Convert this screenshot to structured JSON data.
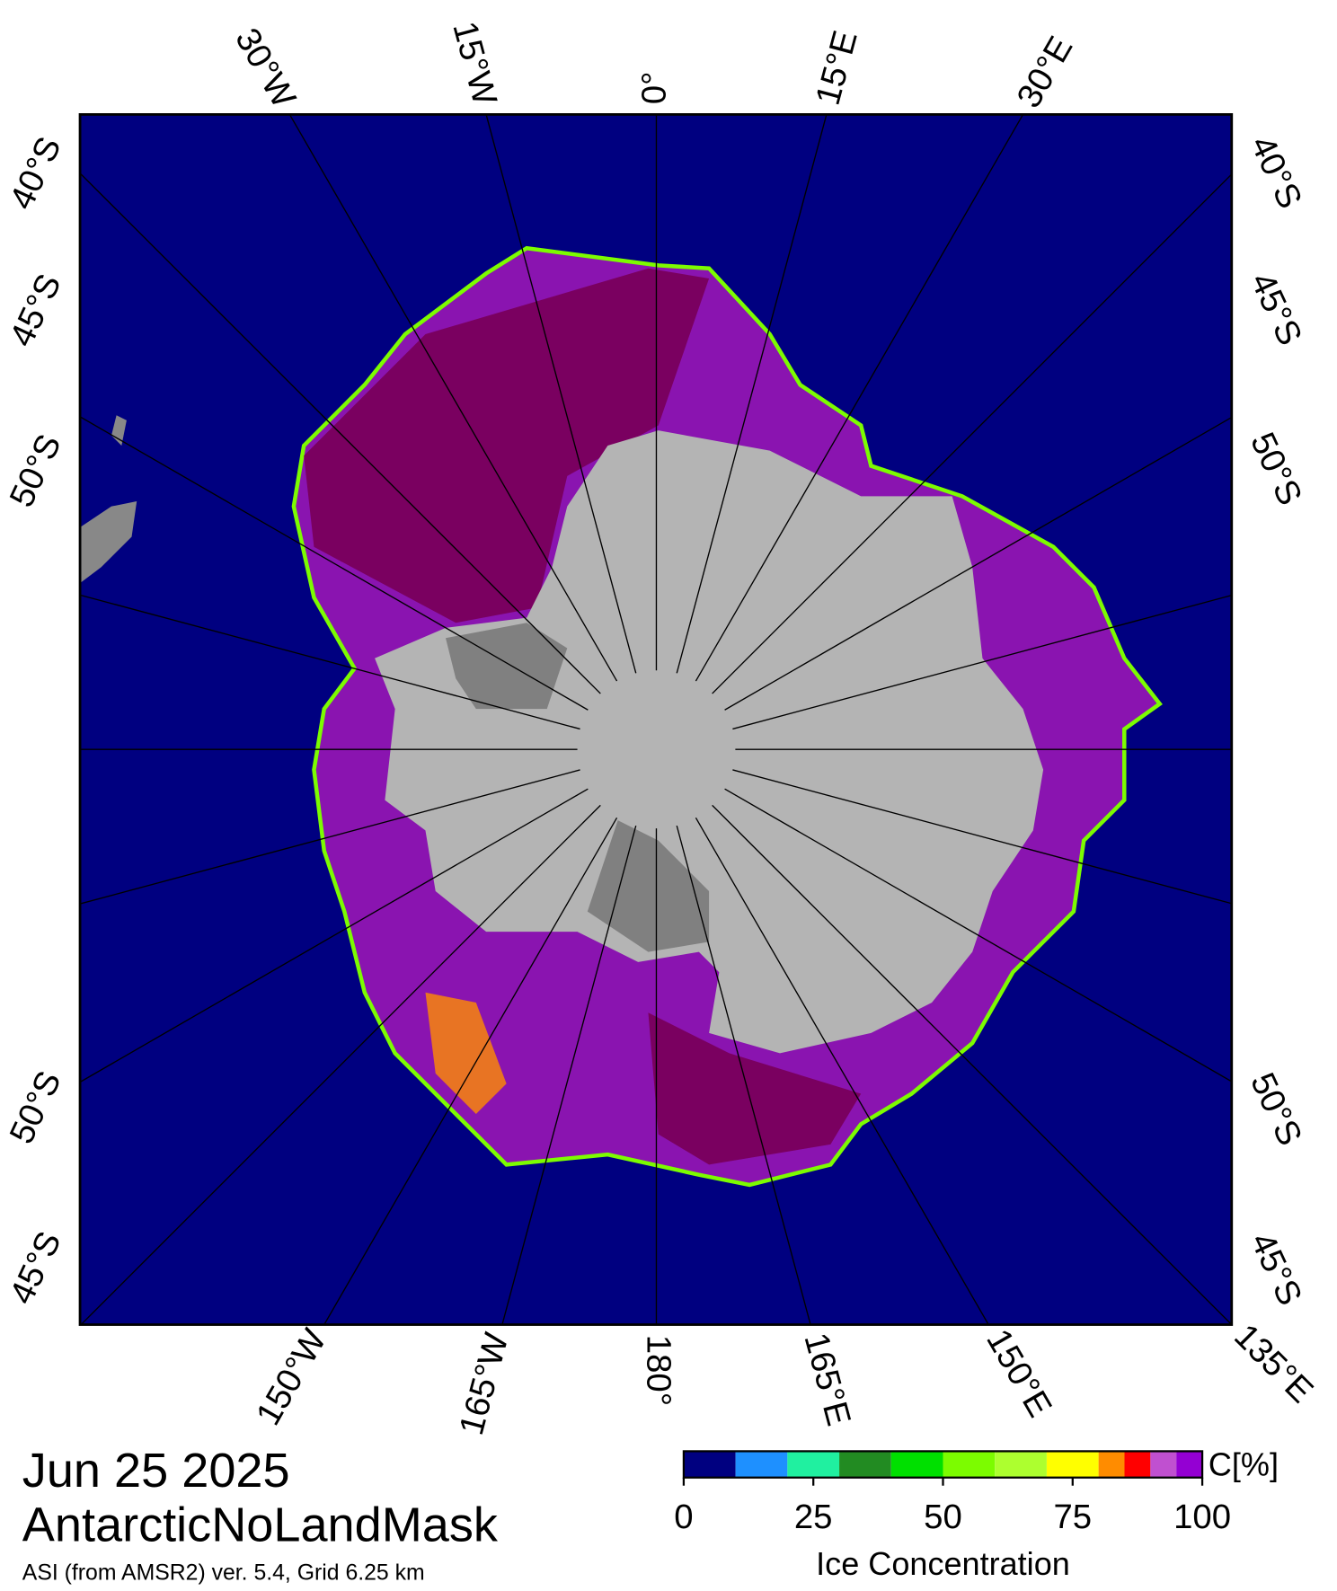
{
  "map": {
    "lon_labels": {
      "top": [
        {
          "value": -30,
          "label": "30°W"
        },
        {
          "value": -15,
          "label": "15°W"
        },
        {
          "value": 0,
          "label": "0°"
        },
        {
          "value": 15,
          "label": "15°E"
        },
        {
          "value": 30,
          "label": "30°E"
        }
      ],
      "bottom": [
        {
          "value": -150,
          "label": "150°W"
        },
        {
          "value": -165,
          "label": "165°W"
        },
        {
          "value": 180,
          "label": "180°"
        },
        {
          "value": 165,
          "label": "165°E"
        },
        {
          "value": 150,
          "label": "150°E"
        },
        {
          "value": 135,
          "label": "135°E"
        }
      ]
    },
    "lat_labels": {
      "left_upper": [
        {
          "value": -40,
          "label": "40°S"
        },
        {
          "value": -45,
          "label": "45°S"
        },
        {
          "value": -50,
          "label": "50°S"
        }
      ],
      "left_lower": [
        {
          "value": -50,
          "label": "50°S"
        },
        {
          "value": -45,
          "label": "45°S"
        }
      ],
      "right_upper": [
        {
          "value": -40,
          "label": "40°S"
        },
        {
          "value": -45,
          "label": "45°S"
        },
        {
          "value": -50,
          "label": "50°S"
        }
      ],
      "right_lower": [
        {
          "value": -50,
          "label": "50°S"
        },
        {
          "value": -45,
          "label": "45°S"
        }
      ]
    },
    "date": "Jun 25 2025",
    "title": "AntarcticNoLandMask",
    "subtitle": "ASI (from AMSR2) ver. 5.4,  Grid 6.25 km",
    "colorbar": {
      "bins": [
        0,
        10,
        20,
        30,
        40,
        50,
        60,
        70,
        80,
        85,
        90,
        95,
        100
      ],
      "colors": [
        "#000080",
        "#1e90ff",
        "#20f0a0",
        "#228b22",
        "#00e000",
        "#7cfc00",
        "#adff2f",
        "#ffff00",
        "#ff8c00",
        "#ff0000",
        "#c050d0",
        "#9400d3"
      ],
      "xlim": [
        0,
        100
      ],
      "xticks": [
        0,
        25,
        50,
        75,
        100
      ],
      "unit_label": "C[%]",
      "title": "Ice Concentration"
    }
  }
}
